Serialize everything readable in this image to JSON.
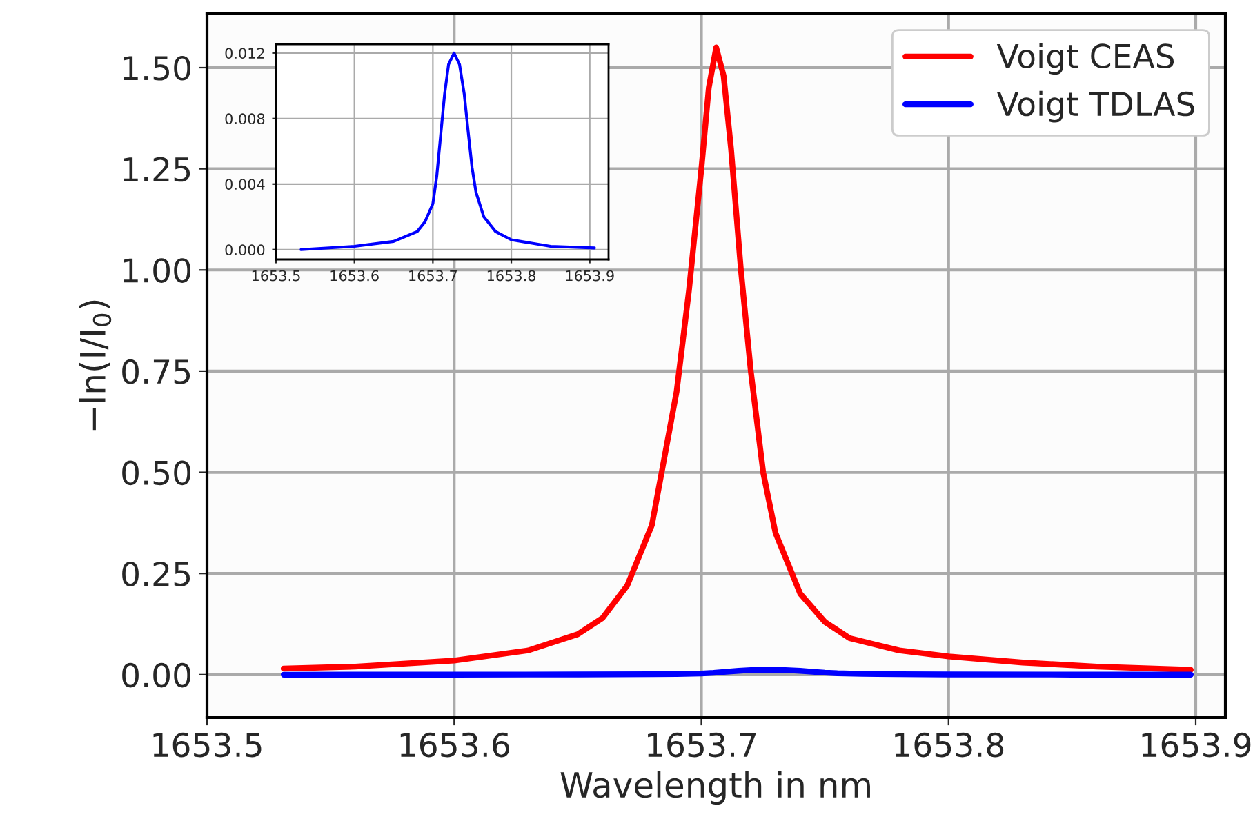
{
  "chart_data": [
    {
      "type": "line",
      "xlabel": "Wavelength in nm",
      "ylabel": "−ln(I/I$_{0}$)",
      "xlim": [
        1653.5,
        1653.912
      ],
      "ylim": [
        -0.106,
        1.633
      ],
      "xticks": [
        1653.5,
        1653.6,
        1653.7,
        1653.8,
        1653.9
      ],
      "yticks": [
        {
          "value": 0,
          "label": "0.00"
        },
        {
          "value": 0.25,
          "label": "0.25"
        },
        {
          "value": 0.5,
          "label": "0.50"
        },
        {
          "value": 0.75,
          "label": "0.75"
        },
        {
          "value": 1.0,
          "label": "1.00"
        },
        {
          "value": 1.25,
          "label": "1.25"
        },
        {
          "value": 1.5,
          "label": "1.50"
        }
      ],
      "grid": true,
      "legend": "top right",
      "marker": "none",
      "line_style": "solid",
      "series": [
        {
          "name": "Voigt CEAS",
          "color": "#ff0000",
          "x": [
            1653.531,
            1653.56,
            1653.6,
            1653.63,
            1653.65,
            1653.66,
            1653.67,
            1653.68,
            1653.69,
            1653.695,
            1653.7,
            1653.703,
            1653.706,
            1653.709,
            1653.712,
            1653.716,
            1653.72,
            1653.725,
            1653.73,
            1653.74,
            1653.75,
            1653.76,
            1653.78,
            1653.8,
            1653.83,
            1653.86,
            1653.898
          ],
          "values": [
            0.015,
            0.02,
            0.035,
            0.06,
            0.1,
            0.14,
            0.22,
            0.37,
            0.7,
            0.95,
            1.25,
            1.45,
            1.55,
            1.48,
            1.3,
            1.0,
            0.75,
            0.5,
            0.35,
            0.2,
            0.13,
            0.09,
            0.06,
            0.045,
            0.03,
            0.02,
            0.012
          ]
        },
        {
          "name": "Voigt TDLAS",
          "color": "#0000ff",
          "x": [
            1653.531,
            1653.6,
            1653.65,
            1653.68,
            1653.69,
            1653.7,
            1653.705,
            1653.71,
            1653.715,
            1653.72,
            1653.727,
            1653.734,
            1653.74,
            1653.745,
            1653.75,
            1653.755,
            1653.765,
            1653.78,
            1653.8,
            1653.85,
            1653.898
          ],
          "values": [
            0.0,
            0.0002,
            0.0005,
            0.0011,
            0.0017,
            0.0028,
            0.0045,
            0.007,
            0.0095,
            0.0113,
            0.012,
            0.0113,
            0.0095,
            0.0072,
            0.005,
            0.0035,
            0.002,
            0.0011,
            0.0006,
            0.0002,
            0.0001
          ]
        }
      ]
    },
    {
      "type": "line",
      "xlim": [
        1653.5,
        1653.924
      ],
      "ylim": [
        -0.0006,
        0.01254
      ],
      "xticks": [
        1653.5,
        1653.6,
        1653.7,
        1653.8,
        1653.9
      ],
      "yticks": [
        {
          "value": 0,
          "label": "0.000"
        },
        {
          "value": 0.004,
          "label": "0.004"
        },
        {
          "value": 0.008,
          "label": "0.008"
        },
        {
          "value": 0.012,
          "label": "0.012"
        }
      ],
      "grid": true,
      "marker": "none",
      "line_style": "solid",
      "series": [
        {
          "color": "#0000ff",
          "x": [
            1653.532,
            1653.6,
            1653.65,
            1653.68,
            1653.69,
            1653.7,
            1653.705,
            1653.71,
            1653.715,
            1653.72,
            1653.727,
            1653.734,
            1653.74,
            1653.745,
            1653.75,
            1653.755,
            1653.765,
            1653.78,
            1653.8,
            1653.85,
            1653.906
          ],
          "values": [
            0.0,
            0.0002,
            0.0005,
            0.0011,
            0.0017,
            0.0028,
            0.0045,
            0.007,
            0.0095,
            0.0113,
            0.012,
            0.0113,
            0.0095,
            0.0072,
            0.005,
            0.0035,
            0.002,
            0.0011,
            0.0006,
            0.0002,
            0.0001
          ]
        }
      ]
    }
  ]
}
